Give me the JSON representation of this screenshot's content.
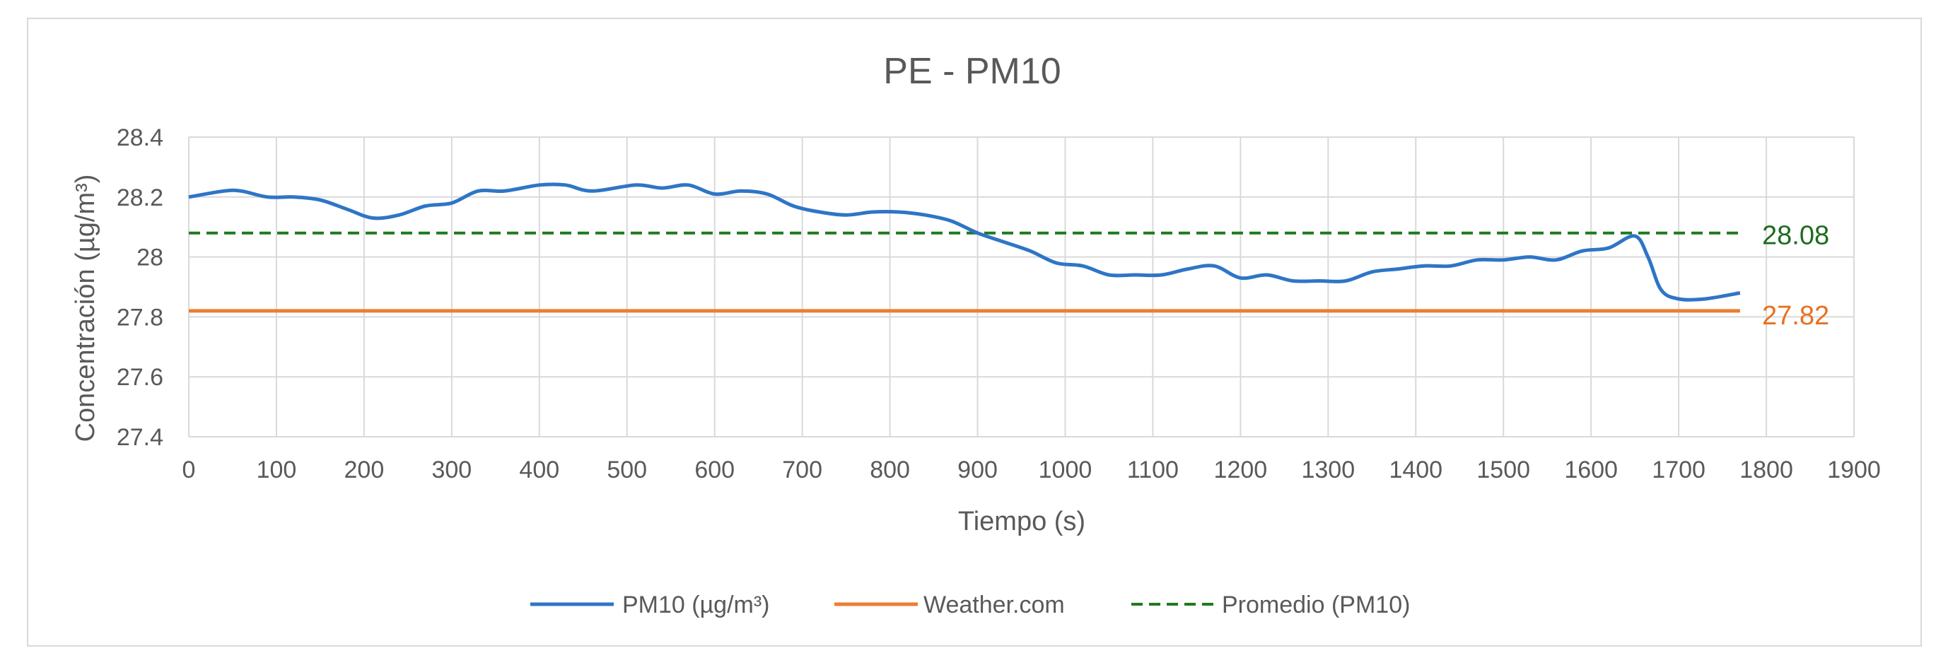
{
  "chart_data": {
    "type": "line",
    "title": "PE - PM10",
    "xlabel": "Tiempo (s)",
    "ylabel": "Concentración (µg/m³)",
    "xlim": [
      0,
      1900
    ],
    "ylim": [
      27.4,
      28.4
    ],
    "xticks": [
      0,
      100,
      200,
      300,
      400,
      500,
      600,
      700,
      800,
      900,
      1000,
      1100,
      1200,
      1300,
      1400,
      1500,
      1600,
      1700,
      1800,
      1900
    ],
    "yticks": [
      27.4,
      27.6,
      27.8,
      28,
      28.2,
      28.4
    ],
    "ytick_labels": [
      "27.4",
      "27.6",
      "27.8",
      "28",
      "28.2",
      "28.4"
    ],
    "grid": true,
    "legend_position": "bottom",
    "series": [
      {
        "name": "PM10 (µg/m³)",
        "color": "#2e75c6",
        "style": "solid",
        "x": [
          0,
          40,
          60,
          90,
          120,
          150,
          180,
          210,
          240,
          270,
          300,
          330,
          360,
          400,
          430,
          460,
          510,
          540,
          570,
          600,
          630,
          660,
          690,
          720,
          750,
          780,
          810,
          840,
          870,
          900,
          930,
          960,
          990,
          1020,
          1050,
          1080,
          1110,
          1140,
          1170,
          1200,
          1230,
          1260,
          1290,
          1320,
          1350,
          1380,
          1410,
          1440,
          1470,
          1500,
          1530,
          1560,
          1590,
          1620,
          1650,
          1665,
          1680,
          1700,
          1730,
          1770
        ],
        "y": [
          28.2,
          28.22,
          28.22,
          28.2,
          28.2,
          28.19,
          28.16,
          28.13,
          28.14,
          28.17,
          28.18,
          28.22,
          28.22,
          28.24,
          28.24,
          28.22,
          28.24,
          28.23,
          28.24,
          28.21,
          28.22,
          28.21,
          28.17,
          28.15,
          28.14,
          28.15,
          28.15,
          28.14,
          28.12,
          28.08,
          28.05,
          28.02,
          27.98,
          27.97,
          27.94,
          27.94,
          27.94,
          27.96,
          27.97,
          27.93,
          27.94,
          27.92,
          27.92,
          27.92,
          27.95,
          27.96,
          27.97,
          27.97,
          27.99,
          27.99,
          28.0,
          27.99,
          28.02,
          28.03,
          28.07,
          28.0,
          27.89,
          27.86,
          27.86,
          27.88
        ]
      },
      {
        "name": "Weather.com",
        "color": "#ed7d31",
        "style": "solid",
        "x": [
          0,
          1770
        ],
        "y": [
          27.82,
          27.82
        ]
      },
      {
        "name": "Promedio (PM10)",
        "color": "#1e7a1e",
        "style": "dashed",
        "x": [
          0,
          1770
        ],
        "y": [
          28.08,
          28.08
        ]
      }
    ],
    "annotations": [
      {
        "text": "28.08",
        "value": 28.08,
        "color": "#1e6b1e"
      },
      {
        "text": "27.82",
        "value": 27.82,
        "color": "#e8701f"
      }
    ]
  }
}
